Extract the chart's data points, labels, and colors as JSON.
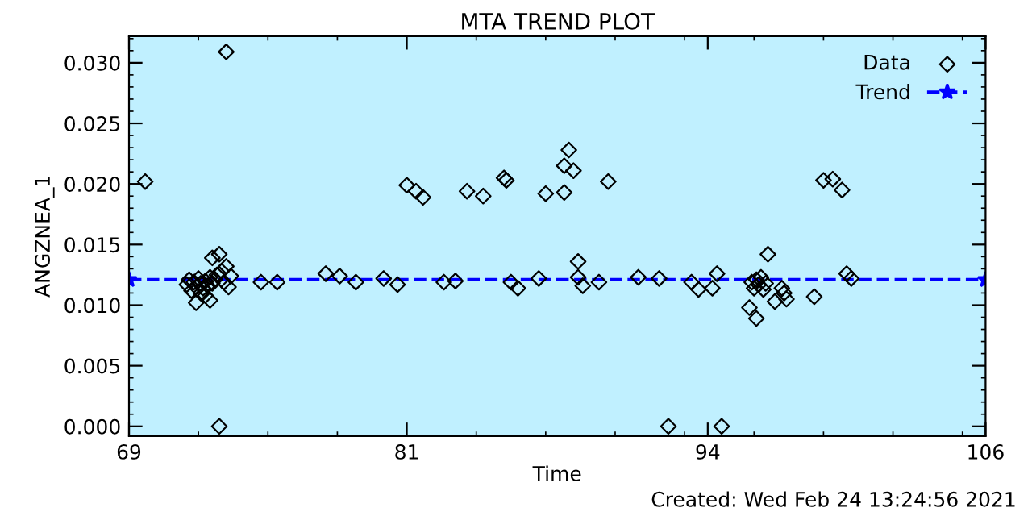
{
  "chart_data": {
    "type": "scatter",
    "title": "MTA TREND PLOT",
    "xlabel": "Time",
    "ylabel": "ANGZNEA_1",
    "annotations": [
      "Created: Wed Feb 24 13:24:56 2021"
    ],
    "xlim": [
      69,
      106
    ],
    "xticks": [
      69,
      81,
      94,
      106
    ],
    "ylim": [
      -0.0008,
      0.0322
    ],
    "yticks": [
      {
        "value": 0,
        "label": "0.000"
      },
      {
        "value": 0.005,
        "label": "0.005"
      },
      {
        "value": 0.01,
        "label": "0.010"
      },
      {
        "value": 0.015,
        "label": "0.015"
      },
      {
        "value": 0.02,
        "label": "0.020"
      },
      {
        "value": 0.025,
        "label": "0.025"
      },
      {
        "value": 0.03,
        "label": "0.030"
      }
    ],
    "grid": false,
    "legend": "top right",
    "series": [
      {
        "name": "Data",
        "marker": "diamond",
        "color": "#000000",
        "x": [
          69.7,
          71.5,
          71.6,
          71.7,
          71.8,
          71.9,
          71.9,
          72.0,
          72.1,
          72.1,
          72.2,
          72.3,
          72.3,
          72.4,
          72.5,
          72.5,
          72.6,
          72.6,
          72.7,
          72.8,
          72.9,
          72.9,
          73.0,
          73.1,
          73.2,
          73.2,
          73.3,
          73.4,
          74.7,
          75.4,
          77.5,
          78.1,
          78.8,
          80.0,
          80.6,
          81.0,
          81.4,
          81.7,
          82.6,
          83.1,
          83.6,
          84.3,
          85.2,
          85.3,
          85.5,
          85.8,
          86.7,
          87.0,
          87.8,
          87.8,
          88.0,
          88.2,
          88.4,
          88.4,
          88.6,
          89.3,
          89.7,
          91.0,
          91.9,
          92.3,
          93.3,
          93.6,
          94.2,
          94.4,
          94.6,
          95.8,
          95.9,
          96.0,
          96.1,
          96.1,
          96.2,
          96.3,
          96.4,
          96.5,
          96.6,
          96.9,
          97.2,
          97.3,
          97.4,
          98.6,
          99.0,
          99.4,
          99.8,
          100.0,
          100.2
        ],
        "values": [
          0.0202,
          0.0117,
          0.0121,
          0.0112,
          0.0119,
          0.0102,
          0.0115,
          0.0122,
          0.011,
          0.0118,
          0.0114,
          0.012,
          0.0108,
          0.0116,
          0.0104,
          0.0123,
          0.0139,
          0.0118,
          0.0121,
          0.0125,
          0.0142,
          0.0,
          0.0128,
          0.0119,
          0.0309,
          0.0132,
          0.0115,
          0.0124,
          0.0119,
          0.0119,
          0.0126,
          0.0124,
          0.0119,
          0.0122,
          0.0117,
          0.0199,
          0.0194,
          0.0189,
          0.0119,
          0.012,
          0.0194,
          0.019,
          0.0205,
          0.0203,
          0.0119,
          0.0114,
          0.0122,
          0.0192,
          0.0215,
          0.0193,
          0.0228,
          0.0211,
          0.0136,
          0.0123,
          0.0116,
          0.0119,
          0.0202,
          0.0123,
          0.0122,
          0.0,
          0.0119,
          0.0113,
          0.0114,
          0.0126,
          0.0,
          0.0098,
          0.0119,
          0.0114,
          0.0089,
          0.0121,
          0.0117,
          0.0123,
          0.0113,
          0.0118,
          0.0142,
          0.0103,
          0.0114,
          0.011,
          0.0105,
          0.0107,
          0.0203,
          0.0204,
          0.0195,
          0.0126,
          0.0122
        ]
      },
      {
        "name": "Trend",
        "type": "line",
        "marker": "star",
        "line_style": "dashed",
        "color": "#0000ff",
        "x": [
          69,
          106
        ],
        "values": [
          0.0121,
          0.0121
        ]
      }
    ]
  }
}
